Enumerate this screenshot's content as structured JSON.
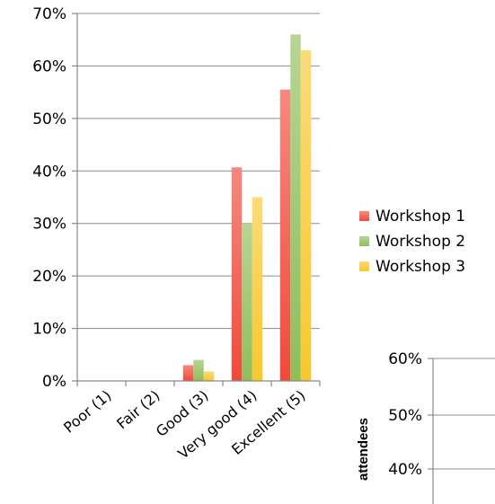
{
  "chart_data": [
    {
      "type": "bar",
      "title": "",
      "xlabel": "",
      "ylabel": "",
      "categories": [
        "Poor (1)",
        "Fair (2)",
        "Good (3)",
        "Very good (4)",
        "Excellent (5)"
      ],
      "series": [
        {
          "name": "Workshop 1",
          "values": [
            0,
            0,
            3,
            40.7,
            55.5
          ],
          "color": "#f04a3a"
        },
        {
          "name": "Workshop 2",
          "values": [
            0,
            0,
            4,
            30,
            66
          ],
          "color": "#8fbe5a"
        },
        {
          "name": "Workshop 3",
          "values": [
            0,
            0,
            1.8,
            35,
            63
          ],
          "color": "#f7c82d"
        }
      ],
      "ylim": [
        0,
        70
      ],
      "yticks": [
        "0%",
        "10%",
        "20%",
        "30%",
        "40%",
        "50%",
        "60%",
        "70%"
      ],
      "legend_position": "right",
      "grid": true
    },
    {
      "type": "bar",
      "title": "",
      "xlabel": "",
      "ylabel": "attendees",
      "yticks": [
        "40%",
        "50%",
        "60%"
      ],
      "grid": true,
      "note": "partially visible, cropped at right and bottom"
    }
  ]
}
